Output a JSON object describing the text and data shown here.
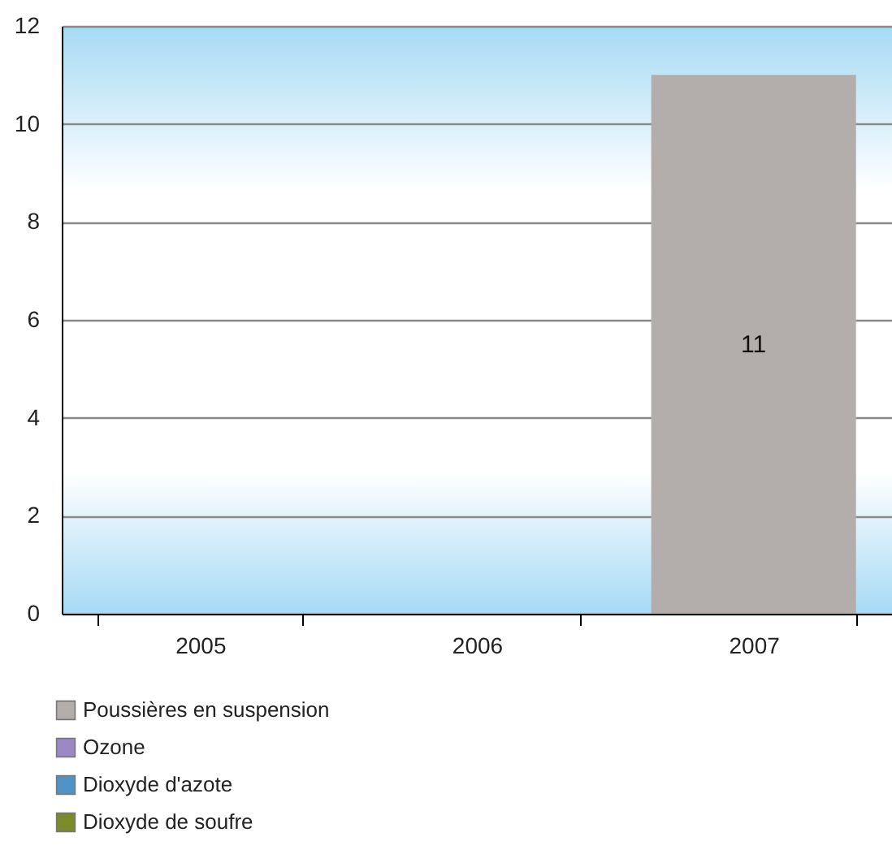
{
  "chart_data": {
    "type": "bar",
    "stacked": true,
    "categories": [
      "2005",
      "2006",
      "2007"
    ],
    "series": [
      {
        "name": "Poussières en suspension",
        "color": "#b3aeab",
        "values": [
          0,
          0,
          11
        ],
        "value_labels": [
          null,
          null,
          "11"
        ]
      },
      {
        "name": "Ozone",
        "color": "#9b88c4",
        "values": [
          0,
          0,
          0
        ]
      },
      {
        "name": "Dioxyde d'azote",
        "color": "#4f92c6",
        "values": [
          0,
          0,
          0
        ]
      },
      {
        "name": "Dioxyde de soufre",
        "color": "#7b8a2a",
        "values": [
          0,
          0,
          0
        ]
      }
    ],
    "ylim": [
      0,
      12
    ],
    "yticks": [
      0,
      2,
      4,
      6,
      8,
      10,
      12
    ],
    "grid": "y",
    "legend": "bottom left"
  }
}
